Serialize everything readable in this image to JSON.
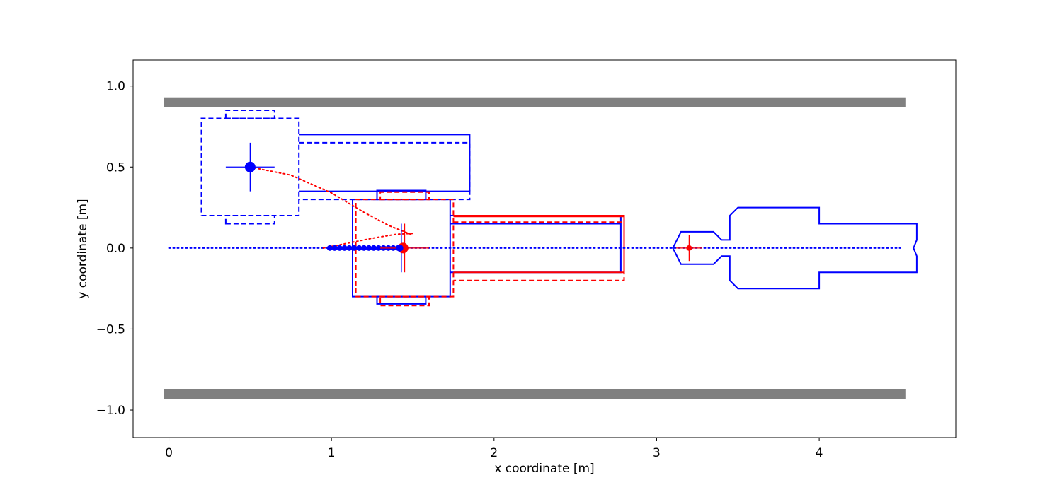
{
  "chart_data": {
    "type": "line",
    "title": "",
    "xlabel": "x coordinate [m]",
    "ylabel": "y coordinate [m]",
    "xlim": [
      -0.22,
      4.84
    ],
    "ylim": [
      -1.17,
      1.16
    ],
    "grid": false,
    "x_ticks": [
      {
        "value": 0,
        "label": "0"
      },
      {
        "value": 1,
        "label": "1"
      },
      {
        "value": 2,
        "label": "2"
      },
      {
        "value": 3,
        "label": "3"
      },
      {
        "value": 4,
        "label": "4"
      }
    ],
    "y_ticks": [
      {
        "value": 1.0,
        "label": "1.0"
      },
      {
        "value": 0.5,
        "label": "0.5"
      },
      {
        "value": 0.0,
        "label": "0.0"
      },
      {
        "value": -0.5,
        "label": "−0.5"
      },
      {
        "value": -1.0,
        "label": "−1.0"
      }
    ],
    "colors": {
      "walls": "#808080",
      "blue": "#0000ff",
      "red": "#ff0000"
    },
    "walls": [
      {
        "name": "top wall",
        "x": [
          -0.03,
          4.53
        ],
        "y": [
          0.87,
          0.93
        ]
      },
      {
        "name": "bottom wall",
        "x": [
          -0.03,
          4.53
        ],
        "y": [
          -0.93,
          -0.87
        ]
      }
    ],
    "series": [
      {
        "style": "blue-dotted",
        "x": [
          0.0,
          4.5
        ],
        "y": [
          0.0,
          0.0
        ]
      },
      {
        "style": "red-dotted",
        "x": [
          0.5,
          0.75,
          1.0,
          1.2,
          1.35,
          1.5
        ],
        "y": [
          0.5,
          0.45,
          0.34,
          0.22,
          0.14,
          0.08
        ]
      },
      {
        "style": "red-dotted",
        "x": [
          0.95,
          1.1,
          1.25,
          1.4,
          1.5
        ],
        "y": [
          0.0,
          0.03,
          0.06,
          0.085,
          0.09
        ]
      },
      {
        "style": "blue-markers",
        "x": [
          0.99,
          1.02,
          1.05,
          1.08,
          1.11,
          1.14,
          1.17,
          1.2,
          1.23,
          1.26,
          1.29,
          1.32,
          1.35,
          1.38,
          1.41,
          1.43
        ],
        "y": [
          0,
          0,
          0,
          0,
          0,
          0,
          0,
          0,
          0,
          0,
          0,
          0,
          0,
          0,
          0,
          0
        ]
      }
    ],
    "points": [
      {
        "x": 0.5,
        "y": 0.5,
        "color": "blue",
        "size": "large"
      },
      {
        "x": 1.44,
        "y": 0.0,
        "color": "red",
        "size": "large"
      },
      {
        "x": 1.42,
        "y": 0.0,
        "color": "blue",
        "size": "medium"
      },
      {
        "x": 3.2,
        "y": 0.0,
        "color": "red",
        "size": "small"
      }
    ],
    "crosshairs": [
      {
        "x": 0.5,
        "y": 0.5,
        "half_width": 0.15,
        "half_height": 0.15,
        "color": "blue"
      },
      {
        "x": 1.43,
        "y": 0.0,
        "half_width": 0.15,
        "half_height": 0.15,
        "color": "blue"
      },
      {
        "x": 1.45,
        "y": 0.0,
        "half_width": 0.15,
        "half_height": 0.15,
        "color": "red"
      },
      {
        "x": 3.2,
        "y": 0.0,
        "half_width": 0.08,
        "half_height": 0.08,
        "color": "red"
      }
    ],
    "outlines": [
      {
        "color": "blue",
        "dashed": true,
        "closed": true,
        "x": [
          0.2,
          0.8,
          0.8,
          0.2
        ],
        "y": [
          0.2,
          0.2,
          0.8,
          0.8
        ]
      },
      {
        "color": "blue",
        "dashed": true,
        "closed": true,
        "x": [
          0.35,
          0.65,
          0.65,
          0.35
        ],
        "y": [
          0.8,
          0.8,
          0.85,
          0.85
        ]
      },
      {
        "color": "blue",
        "dashed": true,
        "closed": true,
        "x": [
          0.35,
          0.65,
          0.65,
          0.35
        ],
        "y": [
          0.15,
          0.15,
          0.2,
          0.2
        ]
      },
      {
        "color": "blue",
        "dashed": false,
        "closed": false,
        "x": [
          0.8,
          1.85,
          1.85
        ],
        "y": [
          0.7,
          0.7,
          0.35
        ]
      },
      {
        "color": "blue",
        "dashed": true,
        "closed": false,
        "x": [
          0.8,
          1.85,
          1.85,
          0.8
        ],
        "y": [
          0.65,
          0.65,
          0.3,
          0.3
        ]
      },
      {
        "color": "blue",
        "dashed": false,
        "closed": false,
        "x": [
          0.8,
          1.85
        ],
        "y": [
          0.35,
          0.35
        ]
      },
      {
        "color": "blue",
        "dashed": false,
        "closed": true,
        "x": [
          1.13,
          1.73,
          1.73,
          1.13
        ],
        "y": [
          -0.3,
          -0.3,
          0.3,
          0.3
        ]
      },
      {
        "color": "blue",
        "dashed": false,
        "closed": true,
        "x": [
          1.28,
          1.58,
          1.58,
          1.28
        ],
        "y": [
          0.3,
          0.3,
          0.355,
          0.355
        ]
      },
      {
        "color": "blue",
        "dashed": false,
        "closed": true,
        "x": [
          1.28,
          1.58,
          1.58,
          1.28
        ],
        "y": [
          -0.3,
          -0.3,
          -0.345,
          -0.345
        ]
      },
      {
        "color": "blue",
        "dashed": false,
        "closed": false,
        "x": [
          1.73,
          2.78,
          2.78,
          1.73
        ],
        "y": [
          0.2,
          0.2,
          -0.15,
          -0.15
        ]
      },
      {
        "color": "blue",
        "dashed": false,
        "closed": false,
        "x": [
          1.73,
          2.78
        ],
        "y": [
          0.15,
          0.15
        ]
      },
      {
        "color": "red",
        "dashed": true,
        "closed": true,
        "x": [
          1.15,
          1.75,
          1.75,
          1.15
        ],
        "y": [
          -0.3,
          -0.3,
          0.3,
          0.3
        ]
      },
      {
        "color": "red",
        "dashed": true,
        "closed": true,
        "x": [
          1.3,
          1.6,
          1.6,
          1.3
        ],
        "y": [
          0.3,
          0.3,
          0.345,
          0.345
        ]
      },
      {
        "color": "red",
        "dashed": true,
        "closed": true,
        "x": [
          1.3,
          1.6,
          1.6,
          1.3
        ],
        "y": [
          -0.3,
          -0.3,
          -0.355,
          -0.355
        ]
      },
      {
        "color": "red",
        "dashed": false,
        "closed": false,
        "x": [
          1.75,
          2.8,
          2.8,
          1.75
        ],
        "y": [
          0.2,
          0.2,
          -0.15,
          -0.15
        ]
      },
      {
        "color": "red",
        "dashed": true,
        "closed": false,
        "x": [
          1.75,
          2.8,
          2.8,
          1.75
        ],
        "y": [
          0.16,
          0.16,
          -0.2,
          -0.2
        ]
      },
      {
        "color": "red",
        "dashed": false,
        "closed": false,
        "x": [
          1.75,
          2.8
        ],
        "y": [
          0.195,
          0.195
        ]
      },
      {
        "color": "blue",
        "dashed": false,
        "closed": true,
        "x": [
          3.1,
          3.15,
          3.35,
          3.4,
          3.45,
          3.45,
          3.5,
          4.0,
          4.0,
          4.6,
          4.6,
          4.58,
          4.6,
          4.6,
          4.0,
          4.0,
          3.5,
          3.45,
          3.45,
          3.4,
          3.35,
          3.15
        ],
        "y": [
          0.0,
          0.1,
          0.1,
          0.05,
          0.05,
          0.2,
          0.25,
          0.25,
          0.15,
          0.15,
          0.05,
          0.0,
          -0.05,
          -0.15,
          -0.15,
          -0.25,
          -0.25,
          -0.2,
          -0.05,
          -0.05,
          -0.1,
          -0.1
        ]
      }
    ]
  }
}
